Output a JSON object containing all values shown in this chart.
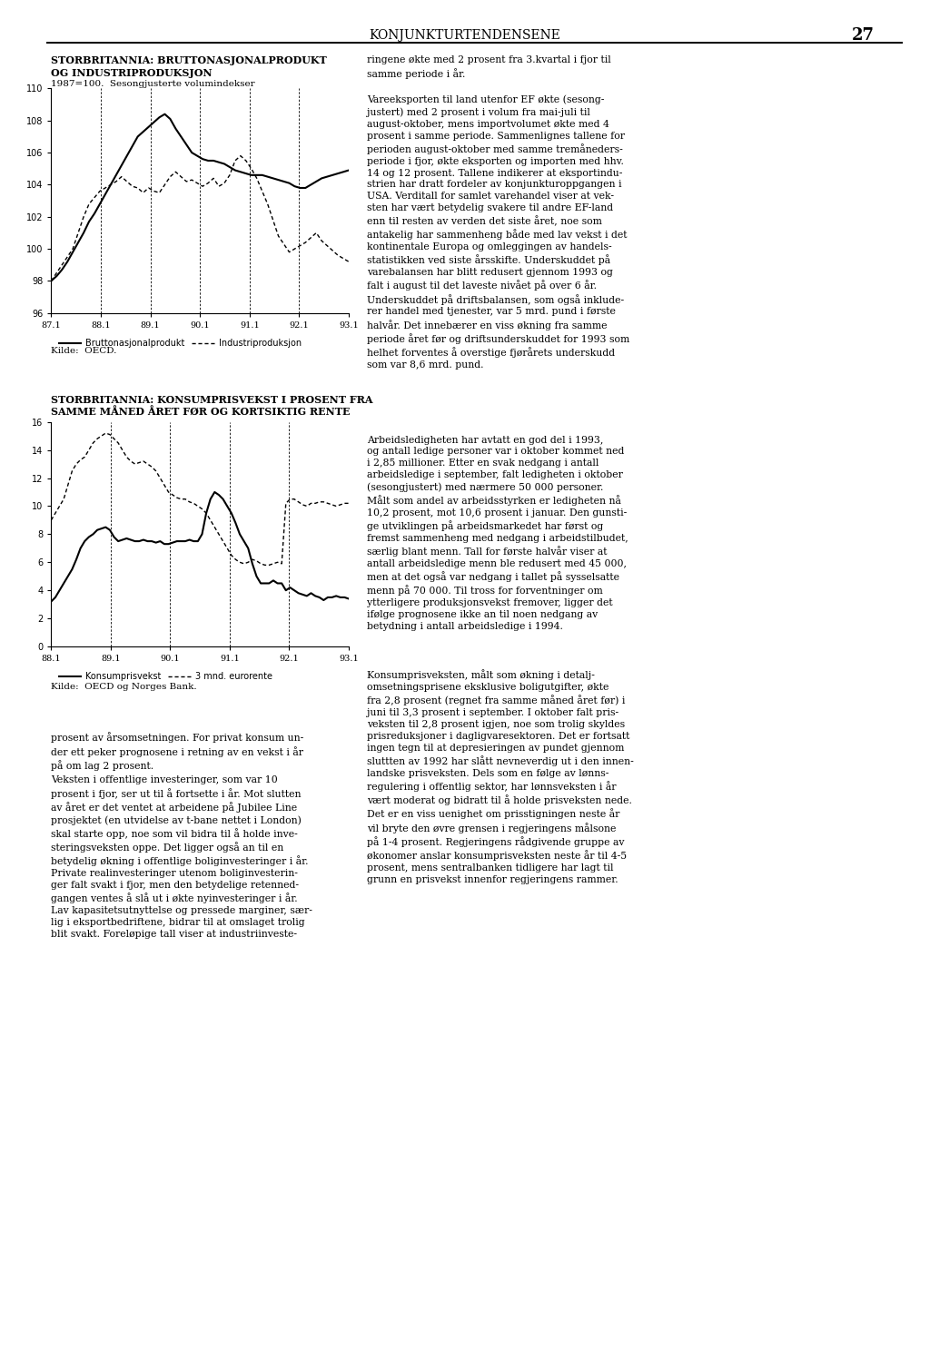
{
  "chart1_title_line1": "STORBRITANNIA: BRUTTONASJONALPRODUKT",
  "chart1_title_line2": "OG INDUSTRIPRODUKSJON",
  "chart1_subtitle": "1987=100.  Sesongjusterte volumindekser",
  "chart1_ylim": [
    96,
    110
  ],
  "chart1_yticks": [
    96,
    98,
    100,
    102,
    104,
    106,
    108,
    110
  ],
  "chart1_source": "Kilde:  OECD.",
  "chart1_legend": [
    "Bruttonasjonalprodukt",
    "Industriproduksjon"
  ],
  "chart1_xtick_labels": [
    "87.1",
    "88.1",
    "89.1",
    "90.1",
    "91.1",
    "92.1",
    "93.1"
  ],
  "chart2_title_line1": "STORBRITANNIA: KONSUMPRISVEKST I PROSENT FRA",
  "chart2_title_line2": "SAMME MÅNED ÅRET FØR OG KORTSIKTIG RENTE",
  "chart2_ylim": [
    0,
    16
  ],
  "chart2_yticks": [
    0,
    2,
    4,
    6,
    8,
    10,
    12,
    14,
    16
  ],
  "chart2_source": "Kilde:  OECD og Norges Bank.",
  "chart2_legend": [
    "Konsumprisvekst",
    "3 mnd. eurorente"
  ],
  "chart2_xtick_labels": [
    "88.1",
    "89.1",
    "90.1",
    "91.1",
    "92.1",
    "93.1"
  ],
  "gdp": [
    98.0,
    98.3,
    98.7,
    99.2,
    99.8,
    100.4,
    101.0,
    101.7,
    102.2,
    102.8,
    103.4,
    104.0,
    104.6,
    105.2,
    105.8,
    106.4,
    107.0,
    107.3,
    107.6,
    107.9,
    108.2,
    108.4,
    108.1,
    107.5,
    107.0,
    106.5,
    106.0,
    105.8,
    105.6,
    105.5,
    105.5,
    105.4,
    105.3,
    105.1,
    104.9,
    104.8,
    104.7,
    104.6,
    104.6,
    104.6,
    104.5,
    104.4,
    104.3,
    104.2,
    104.1,
    103.9,
    103.8,
    103.8,
    104.0,
    104.2,
    104.4,
    104.5,
    104.6,
    104.7,
    104.8,
    104.9
  ],
  "industrial": [
    98.0,
    98.5,
    99.0,
    99.5,
    100.0,
    101.0,
    102.0,
    102.8,
    103.2,
    103.6,
    103.8,
    104.0,
    104.2,
    104.5,
    104.2,
    103.9,
    103.8,
    103.5,
    103.8,
    103.6,
    103.5,
    104.0,
    104.5,
    104.8,
    104.5,
    104.2,
    104.3,
    104.1,
    103.9,
    104.1,
    104.4,
    103.9,
    104.1,
    104.6,
    105.5,
    105.8,
    105.5,
    105.0,
    104.4,
    103.6,
    102.8,
    101.8,
    100.8,
    100.3,
    99.8,
    100.0,
    100.2,
    100.4,
    100.7,
    101.0,
    100.5,
    100.2,
    99.9,
    99.6,
    99.4,
    99.2
  ],
  "cpi": [
    3.2,
    3.5,
    4.0,
    4.5,
    5.0,
    5.5,
    6.2,
    7.0,
    7.5,
    7.8,
    8.0,
    8.3,
    8.4,
    8.5,
    8.3,
    7.8,
    7.5,
    7.6,
    7.7,
    7.6,
    7.5,
    7.5,
    7.6,
    7.5,
    7.5,
    7.4,
    7.5,
    7.3,
    7.3,
    7.4,
    7.5,
    7.5,
    7.5,
    7.6,
    7.5,
    7.5,
    8.0,
    9.5,
    10.5,
    11.0,
    10.8,
    10.5,
    10.0,
    9.5,
    8.8,
    8.0,
    7.5,
    7.0,
    5.9,
    5.0,
    4.5,
    4.5,
    4.5,
    4.7,
    4.5,
    4.5,
    4.0,
    4.2,
    4.0,
    3.8,
    3.7,
    3.6,
    3.8,
    3.6,
    3.5,
    3.3,
    3.5,
    3.5,
    3.6,
    3.5,
    3.5,
    3.4
  ],
  "eurorente": [
    9.0,
    9.5,
    10.0,
    10.5,
    11.5,
    12.5,
    13.0,
    13.3,
    13.5,
    14.0,
    14.5,
    14.8,
    15.0,
    15.2,
    15.1,
    14.8,
    14.5,
    14.0,
    13.5,
    13.2,
    13.0,
    13.1,
    13.2,
    13.0,
    12.8,
    12.5,
    12.0,
    11.5,
    11.0,
    10.8,
    10.6,
    10.5,
    10.5,
    10.3,
    10.2,
    10.0,
    9.8,
    9.5,
    9.0,
    8.5,
    8.0,
    7.5,
    7.0,
    6.5,
    6.2,
    6.0,
    5.9,
    6.0,
    6.2,
    6.1,
    5.9,
    5.8,
    5.8,
    5.9,
    6.0,
    5.9,
    10.2,
    10.5,
    10.5,
    10.3,
    10.1,
    10.0,
    10.2,
    10.2,
    10.3,
    10.3,
    10.2,
    10.1,
    10.0,
    10.1,
    10.2,
    10.2
  ],
  "page_title": "KONJUNKTURTENDENSENE",
  "page_number": "27",
  "bg": "#ffffff",
  "black": "#000000",
  "right_text_top": "ringene økte med 2 prosent fra 3.kvartal i fjor til\nsamme periode i år.",
  "right_para1": "Vareeksporten til land utenfor EF økte (sesong-\njustert) med 2 prosent i volum fra mai-juli til\naugust-oktober, mens importvolumet økte med 4\nprosent i samme periode. Sammenlignes tallene for\nperioden august-oktober med samme tremåneders-\nperiode i fjor, økte eksporten og importen med hhv.\n14 og 12 prosent. Tallene indikerer at eksportindu-\nstrien har dratt fordeler av konjunkturoppgangen i\nUSA. Verditall for samlet varehandel viser at vek-\nsten har vært betydelig svakere til andre EF-land\nenn til resten av verden det siste året, noe som\nantakelig har sammenheng både med lav vekst i det\nkontinentale Europa og omleggingen av handels-\nstatistikken ved siste årsskifte. Underskuddet på\nvarebalansen har blitt redusert gjennom 1993 og\nfalt i august til det laveste nivået på over 6 år.\nUnderskuddet på driftsbalansen, som også inklude-\nrer handel med tjenester, var 5 mrd. pund i første\nhalvår. Det innebærer en viss økning fra samme\nperiode året før og driftsunderskuddet for 1993 som\nhelhet forventes å overstige fjørårets underskudd\nsom var 8,6 mrd. pund.",
  "right_para2": "Arbeidsledigheten har avtatt en god del i 1993,\nog antall ledige personer var i oktober kommet ned\ni 2,85 millioner. Etter en svak nedgang i antall\narbeidsledige i september, falt ledigheten i oktober\n(sesongjustert) med nærmere 50 000 personer.\nMålt som andel av arbeidsstyrken er ledigheten nå\n10,2 prosent, mot 10,6 prosent i januar. Den gunsti-\nge utviklingen på arbeidsmarkedet har først og\nfremst sammenheng med nedgang i arbeidstilbudet,\nsærlig blant menn. Tall for første halvår viser at\nantall arbeidsledige menn ble redusert med 45 000,\nmen at det også var nedgang i tallet på sysselsatte\nmenn på 70 000. Til tross for forventninger om\nytterligere produksjonsvekst fremover, ligger det\nifølge prognosene ikke an til noen nedgang av\nbetydning i antall arbeidsledige i 1994.",
  "right_para3": "Konsumprisveksten, målt som økning i detalj-\nomsetningsprisene eksklusive boligutgifter, økte\nfra 2,8 prosent (regnet fra samme måned året før) i\njuni til 3,3 prosent i september. I oktober falt pris-\nveksten til 2,8 prosent igjen, noe som trolig skyldes\nprisreduksjoner i dagligvaresektoren. Det er fortsatt\ningen tegn til at depresieringen av pundet gjennom\nsluttten av 1992 har slått nevneverdig ut i den innen-\nlandske prisveksten. Dels som en følge av lønns-\nregulering i offentlig sektor, har lønnsveksten i år\nvært moderat og bidratt til å holde prisveksten nede.\nDet er en viss uenighet om prisstigningen neste år\nvil bryte den øvre grensen i regjeringens målsone\npå 1-4 prosent. Regjeringens rådgivende gruppe av\nøkonomer anslar konsumprisveksten neste år til 4-5\nprosent, mens sentralbanken tidligere har lagt til\ngrunn en prisvekst innenfor regjeringens rammer.",
  "left_bottom_para0": "prosent av årsomsetningen. For privat konsum un-\nder ett peker prognosene i retning av en vekst i år\npå om lag 2 prosent.",
  "left_bottom_para1": "Veksten i offentlige investeringer, som var 10\nprosent i fjor, ser ut til å fortsette i år. Mot slutten\nav året er det ventet at arbeidene på Jubilee Line\nprosjektet (en utvidelse av t-bane nettet i London)\nskal starte opp, noe som vil bidra til å holde inve-\nsteringsveksten oppe. Det ligger også an til en\nbetydelig økning i offentlige boliginvesteringer i år.\nPrivate realinvesteringer utenom boliginvesterin-\nger falt svakt i fjor, men den betydelige retenned-\ngangen ventes å slå ut i økte nyinvesteringer i år.\nLav kapasitetsutnyttelse og pressede marginer, sær-\nlig i eksportbedriftene, bidrar til at omslaget trolig\nblit svakt. Foreløpige tall viser at industriinveste-"
}
